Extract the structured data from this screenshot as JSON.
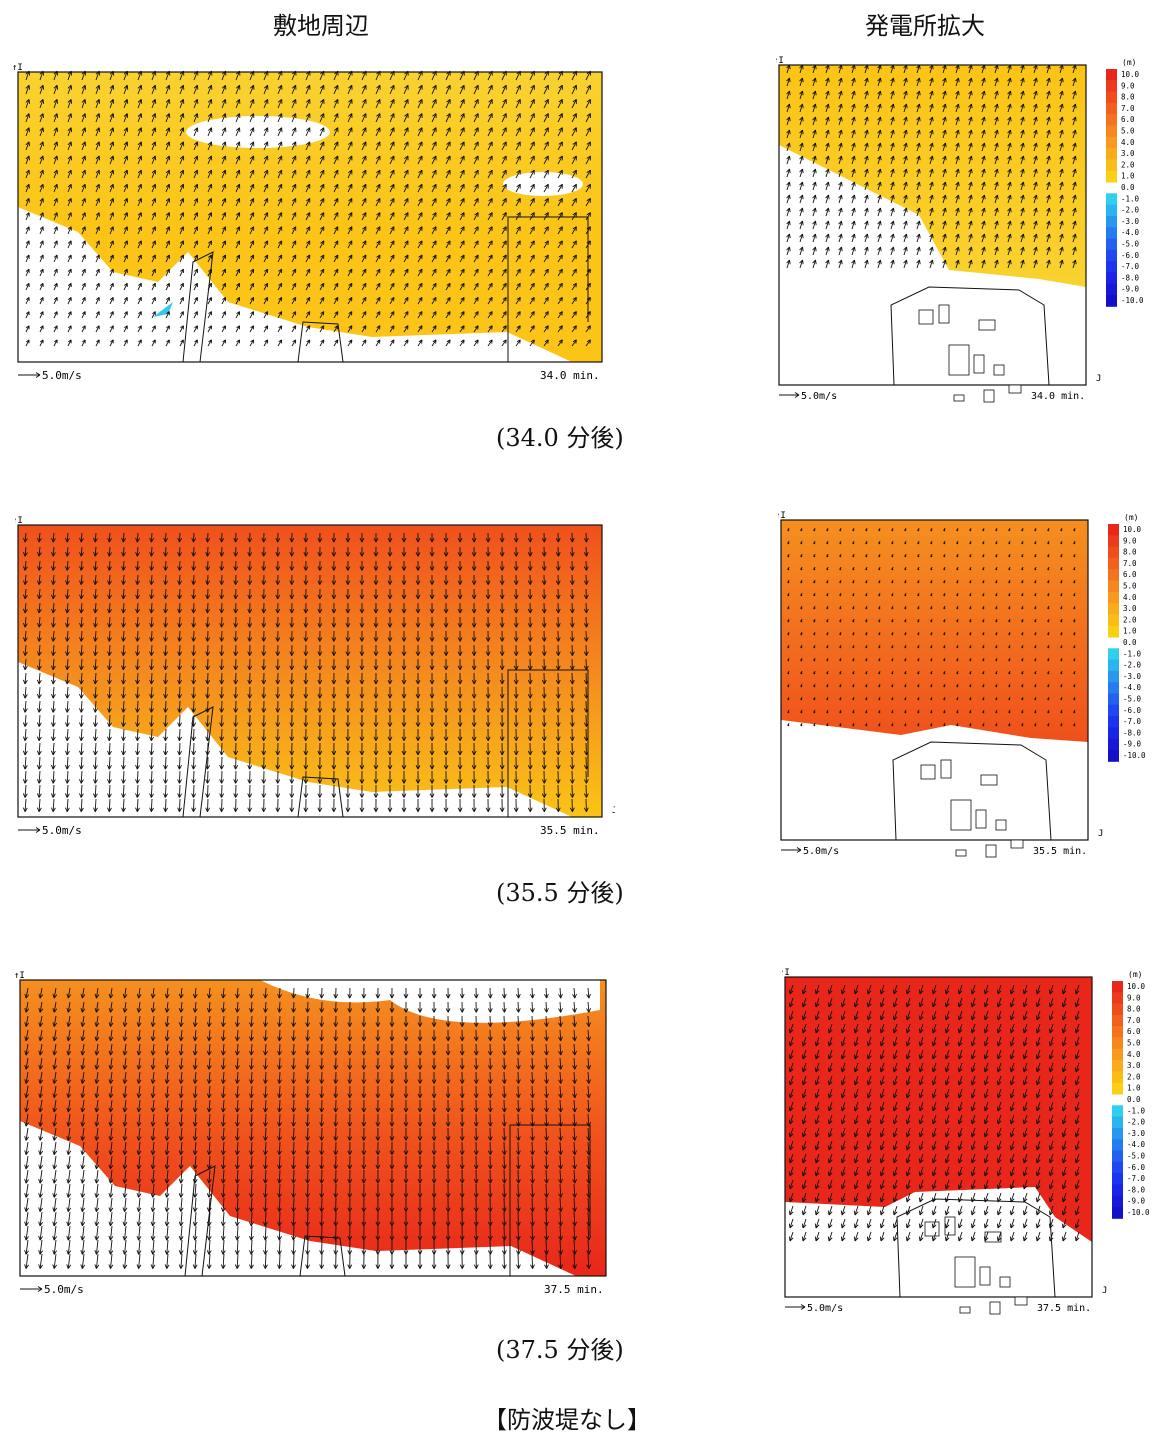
{
  "headers": {
    "left": "敷地周辺",
    "right": "発電所拡大"
  },
  "footer": "【防波堤なし】",
  "axis_labels": {
    "i": "I",
    "j": "J"
  },
  "scale_arrow": "5.0m/s",
  "legend_unit": "(m)",
  "legend_ticks": [
    "10.0",
    "9.0",
    "8.0",
    "7.0",
    "6.0",
    "5.0",
    "4.0",
    "3.0",
    "2.0",
    "1.0",
    "0.0",
    "-1.0",
    "-2.0",
    "-3.0",
    "-4.0",
    "-5.0",
    "-6.0",
    "-7.0",
    "-8.0",
    "-9.0",
    "-10.0"
  ],
  "colors": {
    "deep_red": "#e8261a",
    "red_orange": "#f0501c",
    "orange": "#f5901e",
    "yellow": "#fbc416",
    "light_yellow": "#f9d230",
    "cyan": "#2fc8ea",
    "blue": "#1b2ef0"
  },
  "rows": [
    {
      "caption": "(34.0 分後)",
      "time": "34.0 min."
    },
    {
      "caption": "(35.5 分後)",
      "time": "35.5 min."
    },
    {
      "caption": "(37.5 分後)",
      "time": "37.5 min."
    }
  ]
}
